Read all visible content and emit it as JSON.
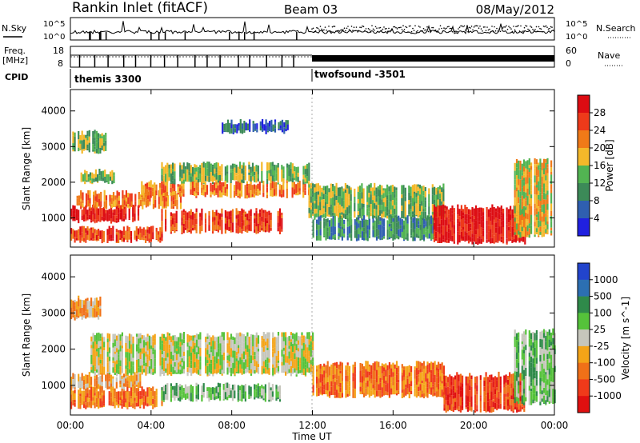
{
  "header": {
    "station": "Rankin Inlet (fitACF)",
    "beam": "Beam 03",
    "date": "08/May/2012"
  },
  "nsky_panel": {
    "left_label": "N.Sky",
    "left_ticks": [
      "10^5",
      "10^0"
    ],
    "right_ticks": [
      "10^5",
      "10^0"
    ],
    "right_label": "N.Search"
  },
  "freq_panel": {
    "left_label_1": "Freq.",
    "left_label_2": "[MHz]",
    "left_ticks": [
      "18",
      "8"
    ],
    "right_ticks": [
      "60",
      "0"
    ],
    "right_label": "Nave"
  },
  "cpid": {
    "label": "CPID",
    "modes": [
      "themis 3300",
      "twofsound -3501"
    ]
  },
  "colors": {
    "power": [
      "#2020e0",
      "#2f5fb0",
      "#3c8a58",
      "#52b452",
      "#f4b82a",
      "#f07a18",
      "#ee3a1a",
      "#dd0c12"
    ],
    "velocity": [
      "#2244cc",
      "#2c6fb2",
      "#2f8a4a",
      "#55c23a",
      "#c6c6bc",
      "#f4a418",
      "#f07018",
      "#f03a1a",
      "#e01010"
    ],
    "ground": "#c0c0b8"
  },
  "chart_data": [
    {
      "type": "heatmap",
      "panel": "power",
      "ylabel": "Slant Range [km]",
      "xlabel": "Time UT",
      "x_ticks": [
        "00:00",
        "04:00",
        "08:00",
        "12:00",
        "16:00",
        "20:00",
        "00:00"
      ],
      "y_ticks": [
        1000,
        2000,
        3000,
        4000
      ],
      "xlim_hours": [
        0,
        24
      ],
      "ylim_km": [
        180,
        4600
      ],
      "colorbar_label": "Power [dB]",
      "colorbar_ticks": [
        28,
        24,
        20,
        16,
        12,
        8,
        4
      ],
      "echo_bands": [
        {
          "start": 0.0,
          "end": 3.5,
          "range_km": [
            900,
            1300
          ],
          "level": 7
        },
        {
          "start": 0.0,
          "end": 4.5,
          "range_km": [
            350,
            700
          ],
          "level": 6
        },
        {
          "start": 0.3,
          "end": 5.5,
          "range_km": [
            1300,
            1700
          ],
          "level": 5
        },
        {
          "start": 0.5,
          "end": 2.2,
          "range_km": [
            2000,
            2300
          ],
          "level": 3
        },
        {
          "start": 0.0,
          "end": 1.8,
          "range_km": [
            2850,
            3400
          ],
          "level": 3
        },
        {
          "start": 3.5,
          "end": 11.8,
          "range_km": [
            1600,
            2000
          ],
          "level": 5
        },
        {
          "start": 4.5,
          "end": 11.8,
          "range_km": [
            2000,
            2500
          ],
          "level": 3
        },
        {
          "start": 4.5,
          "end": 10.5,
          "range_km": [
            600,
            1200
          ],
          "level": 6
        },
        {
          "start": 7.5,
          "end": 10.8,
          "range_km": [
            3400,
            3700
          ],
          "level": 1
        },
        {
          "start": 11.8,
          "end": 18.5,
          "range_km": [
            1000,
            1900
          ],
          "level": 3
        },
        {
          "start": 12.0,
          "end": 18.0,
          "range_km": [
            400,
            1000
          ],
          "level": 2
        },
        {
          "start": 18.0,
          "end": 22.5,
          "range_km": [
            300,
            1300
          ],
          "level": 7
        },
        {
          "start": 22.0,
          "end": 24.0,
          "range_km": [
            500,
            2600
          ],
          "level": 4
        }
      ]
    },
    {
      "type": "heatmap",
      "panel": "velocity",
      "ylabel": "Slant Range [km]",
      "xlabel": "Time UT",
      "x_ticks": [
        "00:00",
        "04:00",
        "08:00",
        "12:00",
        "16:00",
        "20:00",
        "00:00"
      ],
      "y_ticks": [
        1000,
        2000,
        3000,
        4000
      ],
      "xlim_hours": [
        0,
        24
      ],
      "ylim_km": [
        180,
        4600
      ],
      "colorbar_label": "Velocity [m s^-1]",
      "colorbar_ticks": [
        1000,
        500,
        100,
        25,
        -25,
        -100,
        -500,
        -1000
      ],
      "echo_bands": [
        {
          "start": 0.0,
          "end": 3.5,
          "range_km": [
            900,
            1300
          ],
          "level": 5
        },
        {
          "start": 0.0,
          "end": 4.5,
          "range_km": [
            400,
            900
          ],
          "level": 6
        },
        {
          "start": 1.0,
          "end": 12.0,
          "range_km": [
            1300,
            2400
          ],
          "level": 4
        },
        {
          "start": 4.5,
          "end": 10.5,
          "range_km": [
            600,
            1000
          ],
          "level": 3
        },
        {
          "start": 0.0,
          "end": 1.5,
          "range_km": [
            2850,
            3400
          ],
          "level": 5
        },
        {
          "start": 12.0,
          "end": 18.5,
          "range_km": [
            700,
            1600
          ],
          "level": 6
        },
        {
          "start": 18.5,
          "end": 22.5,
          "range_km": [
            300,
            1300
          ],
          "level": 7
        },
        {
          "start": 22.0,
          "end": 24.0,
          "range_km": [
            500,
            2500
          ],
          "level": 3
        }
      ]
    }
  ]
}
